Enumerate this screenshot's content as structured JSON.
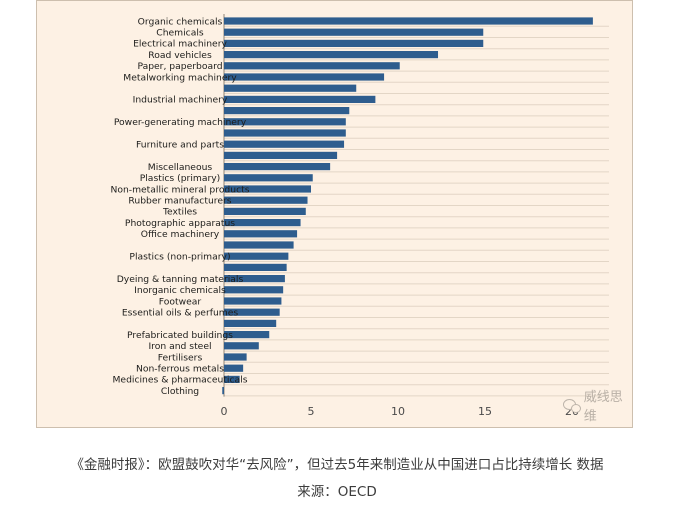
{
  "chart_data": {
    "type": "bar",
    "orientation": "horizontal",
    "categories": [
      "Organic chemicals",
      "Chemicals",
      "Electrical machinery",
      "Road vehicles",
      "Paper, paperboard",
      "Metalworking machinery",
      "",
      "Industrial machinery",
      "",
      "Power-generating machinery",
      "",
      "Furniture and parts",
      "",
      "Miscellaneous",
      "Plastics (primary)",
      "Non-metallic mineral products",
      "Rubber manufacturers",
      "Textiles",
      "Photographic apparatus",
      "Office machinery",
      "",
      "Plastics (non-primary)",
      "",
      "Dyeing & tanning materials",
      "Inorganic chemicals",
      "Footwear",
      "Essential oils & perfumes",
      "",
      "Prefabricated buildings",
      "Iron and steel",
      "Fertilisers",
      "Non-ferrous metals",
      "Medicines & pharmaceuticals",
      "Clothing"
    ],
    "values": [
      21.2,
      14.9,
      14.9,
      12.3,
      10.1,
      9.2,
      7.6,
      8.7,
      7.2,
      7.0,
      7.0,
      6.9,
      6.5,
      6.1,
      5.1,
      5.0,
      4.8,
      4.7,
      4.4,
      4.2,
      4.0,
      3.7,
      3.6,
      3.5,
      3.4,
      3.3,
      3.2,
      3.0,
      2.6,
      2.0,
      1.3,
      1.1,
      0.9,
      -0.1
    ],
    "xlim": [
      -0.5,
      23
    ],
    "xticks": [
      0,
      5,
      10,
      15,
      20
    ],
    "xtick_labels": [
      "0",
      "5",
      "10",
      "15",
      "20"
    ],
    "grid": true,
    "bar_color": "#2e5d8e",
    "background": "#fdf1e4"
  },
  "watermark": {
    "text": "威线思维"
  },
  "caption": {
    "line1": "《金融时报》：欧盟鼓吹对华“去风险”，但过去5年来制造业从中国进口占比持续增长 数据",
    "line2": "来源：OECD"
  }
}
